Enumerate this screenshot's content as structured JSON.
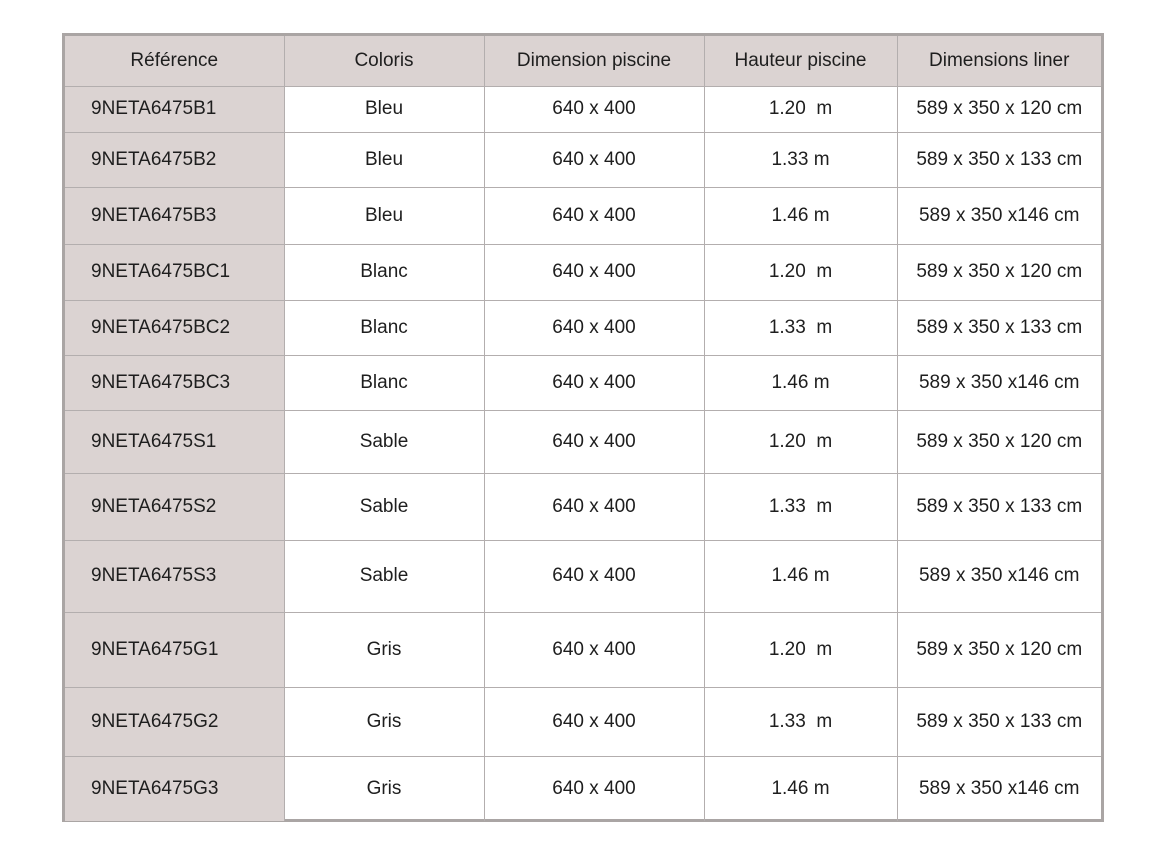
{
  "table": {
    "headers": [
      "Référence",
      "Coloris",
      "Dimension piscine",
      "Hauteur piscine",
      "Dimensions liner"
    ],
    "rows": [
      [
        "9NETA6475B1",
        "Bleu",
        "640 x 400",
        "1.20  m",
        "589 x 350 x 120 cm"
      ],
      [
        "9NETA6475B2",
        "Bleu",
        "640 x 400",
        "1.33 m",
        "589 x 350 x 133 cm"
      ],
      [
        "9NETA6475B3",
        "Bleu",
        "640 x 400",
        "1.46 m",
        "589 x 350 x146 cm"
      ],
      [
        "9NETA6475BC1",
        "Blanc",
        "640 x 400",
        "1.20  m",
        "589 x 350 x 120 cm"
      ],
      [
        "9NETA6475BC2",
        "Blanc",
        "640 x 400",
        "1.33  m",
        "589 x 350 x 133 cm"
      ],
      [
        "9NETA6475BC3",
        "Blanc",
        "640 x 400",
        "1.46 m",
        "589 x 350 x146 cm"
      ],
      [
        "9NETA6475S1",
        "Sable",
        "640 x 400",
        "1.20  m",
        "589 x 350 x 120 cm"
      ],
      [
        "9NETA6475S2",
        "Sable",
        "640 x 400",
        "1.33  m",
        "589 x 350 x 133 cm"
      ],
      [
        "9NETA6475S3",
        "Sable",
        "640 x 400",
        "1.46 m",
        "589 x 350 x146 cm"
      ],
      [
        "9NETA6475G1",
        "Gris",
        "640 x 400",
        "1.20  m",
        "589 x 350 x 120 cm"
      ],
      [
        "9NETA6475G2",
        "Gris",
        "640 x 400",
        "1.33  m",
        "589 x 350 x 133 cm"
      ],
      [
        "9NETA6475G3",
        "Gris",
        "640 x 400",
        "1.46 m",
        "589 x 350 x146 cm"
      ]
    ]
  },
  "colors": {
    "header_bg": "#dbd3d2",
    "border": "#aaa5a4"
  }
}
